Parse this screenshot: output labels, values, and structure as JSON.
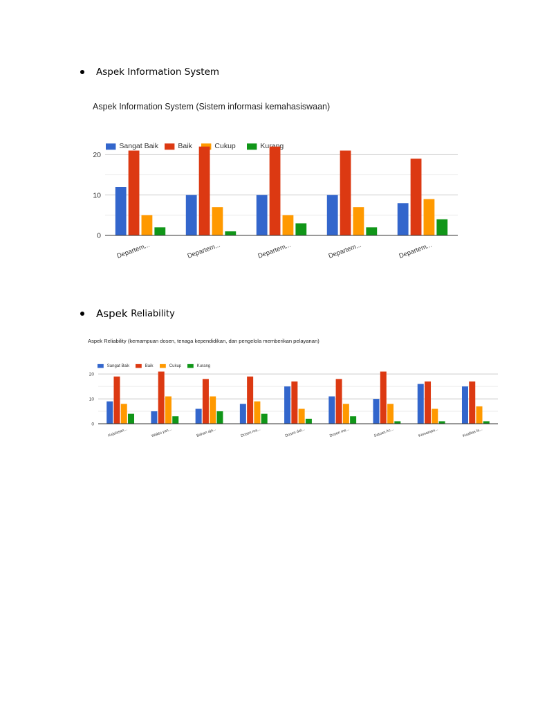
{
  "headings": {
    "first": "Aspek Information System",
    "second_prefix": "Aspek",
    "second_suffix": "Reliability"
  },
  "chart_data": [
    {
      "type": "bar",
      "title": "Aspek Information System (Sistem informasi kemahasiswaan)",
      "xlabel": "",
      "ylabel": "",
      "ylim": [
        0,
        24
      ],
      "yticks": [
        0,
        10,
        20
      ],
      "grid": true,
      "legend_position": "top-left",
      "categories": [
        "Departem...",
        "Departem...",
        "Departem...",
        "Departem...",
        "Departem..."
      ],
      "series": [
        {
          "name": "Sangat Baik",
          "color": "#3366cc",
          "values": [
            12,
            10,
            10,
            10,
            8
          ]
        },
        {
          "name": "Baik",
          "color": "#dc3912",
          "values": [
            21,
            22,
            22,
            21,
            19
          ]
        },
        {
          "name": "Cukup",
          "color": "#ff9900",
          "values": [
            5,
            7,
            5,
            7,
            9
          ]
        },
        {
          "name": "Kurang",
          "color": "#109618",
          "values": [
            2,
            1,
            3,
            2,
            4
          ]
        }
      ]
    },
    {
      "type": "bar",
      "title": "Aspek Reliability (kemampuan dosen, tenaga kependidikan, dan pengelola memberikan pelayanan)",
      "xlabel": "",
      "ylabel": "",
      "ylim": [
        0,
        22
      ],
      "yticks": [
        0,
        10,
        20
      ],
      "grid": true,
      "legend_position": "top-left",
      "categories": [
        "Kejelasan...",
        "Waktu yan...",
        "Bahan aja...",
        "Dosen ma...",
        "Dosen dat...",
        "Dosen me...",
        "Satuan Ac...",
        "Kemampu...",
        "Kualitas la..."
      ],
      "series": [
        {
          "name": "Sangat Baik",
          "color": "#3366cc",
          "values": [
            9,
            5,
            6,
            8,
            15,
            11,
            10,
            16,
            15
          ]
        },
        {
          "name": "Baik",
          "color": "#dc3912",
          "values": [
            19,
            21,
            18,
            19,
            17,
            18,
            21,
            17,
            17
          ]
        },
        {
          "name": "Cukup",
          "color": "#ff9900",
          "values": [
            8,
            11,
            11,
            9,
            6,
            8,
            8,
            6,
            7
          ]
        },
        {
          "name": "Kurang",
          "color": "#109618",
          "values": [
            4,
            3,
            5,
            4,
            2,
            3,
            1,
            1,
            1
          ]
        }
      ]
    }
  ]
}
